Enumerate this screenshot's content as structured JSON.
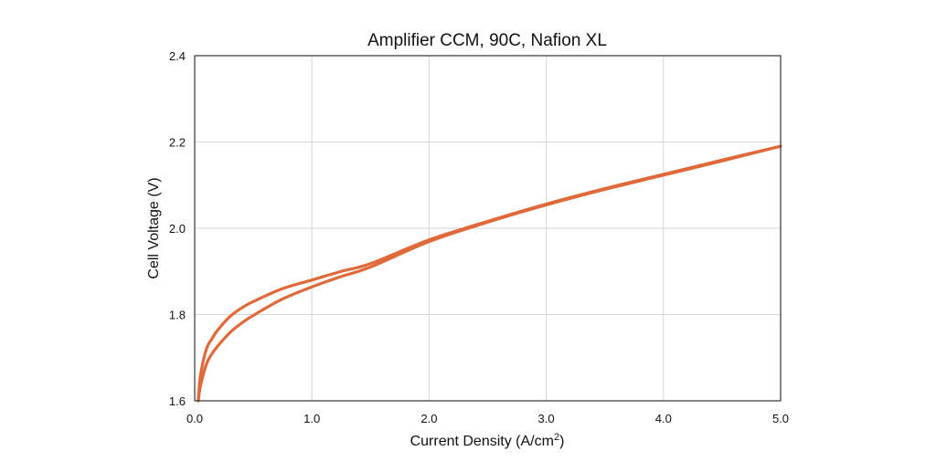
{
  "chart_data": {
    "type": "line",
    "title": "Amplifier CCM, 90C, Nafion XL",
    "xlabel": "Current Density (A/cm",
    "xlabel_superscript": "2",
    "xlabel_suffix": ")",
    "ylabel": "Cell Voltage (V)",
    "xlim": [
      0.0,
      5.0
    ],
    "ylim": [
      1.6,
      2.4
    ],
    "x_ticks": [
      0.0,
      1.0,
      2.0,
      3.0,
      4.0,
      5.0
    ],
    "x_tick_labels": [
      "0.0",
      "1.0",
      "2.0",
      "3.0",
      "4.0",
      "5.0"
    ],
    "y_ticks": [
      1.6,
      1.8,
      2.0,
      2.2,
      2.4
    ],
    "y_tick_labels": [
      "1.6",
      "1.8",
      "2.0",
      "2.2",
      "2.4"
    ],
    "grid": true,
    "legend": "none",
    "color": "#e0693a",
    "series": [
      {
        "x": [
          0.03,
          0.05,
          0.1,
          0.15,
          0.2,
          0.3,
          0.4,
          0.5,
          0.75,
          1.0,
          1.25,
          1.5,
          2.0,
          2.5,
          3.0,
          3.5,
          4.0,
          4.5,
          5.0
        ],
        "values": [
          1.6,
          1.66,
          1.72,
          1.745,
          1.765,
          1.795,
          1.815,
          1.83,
          1.86,
          1.88,
          1.9,
          1.918,
          1.973,
          2.016,
          2.056,
          2.092,
          2.125,
          2.158,
          2.19
        ]
      },
      {
        "x": [
          0.03,
          0.05,
          0.1,
          0.15,
          0.2,
          0.3,
          0.4,
          0.5,
          0.75,
          1.0,
          1.25,
          1.5,
          2.0,
          2.5,
          3.0,
          3.5,
          4.0,
          4.5,
          5.0
        ],
        "values": [
          1.6,
          1.635,
          1.685,
          1.71,
          1.728,
          1.758,
          1.78,
          1.798,
          1.836,
          1.864,
          1.888,
          1.91,
          1.969,
          2.014,
          2.054,
          2.09,
          2.123,
          2.156,
          2.19
        ]
      }
    ]
  }
}
